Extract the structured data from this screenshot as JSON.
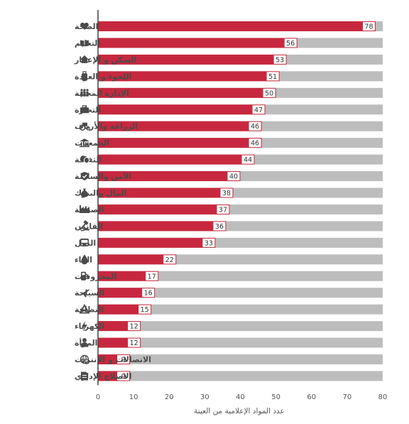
{
  "chart_data": {
    "type": "bar",
    "orientation": "horizontal",
    "xlabel": "عدد المواد الإعلامية من العينة",
    "xlim": [
      0,
      80
    ],
    "xticks": [
      0,
      10,
      20,
      30,
      40,
      50,
      60,
      70,
      80
    ],
    "bar_color": "#c7283f",
    "track_color": "#bdbdbd",
    "categories": [
      {
        "label": "الصحة",
        "value": 78,
        "icon": "heart-icon"
      },
      {
        "label": "التعليم",
        "value": 56,
        "icon": "book-icon"
      },
      {
        "label": "السكن و الإعمار",
        "value": 53,
        "icon": "house-icon"
      },
      {
        "label": "اللجوء و العودة",
        "value": 51,
        "icon": "luggage-icon"
      },
      {
        "label": "الإدارة المحلية",
        "value": 50,
        "icon": "people-icon"
      },
      {
        "label": "التجارة",
        "value": 47,
        "icon": "briefcase-icon"
      },
      {
        "label": "الزراعة والأرياف",
        "value": 46,
        "icon": "tractor-icon"
      },
      {
        "label": "الجمعيات",
        "value": 46,
        "icon": "building-icon"
      },
      {
        "label": "الثقافة",
        "value": 44,
        "icon": "theater-masks-icon"
      },
      {
        "label": "الأمن والسلامة",
        "value": 40,
        "icon": "shield-icon"
      },
      {
        "label": "المال والبنوك",
        "value": 38,
        "icon": "money-bag-icon"
      },
      {
        "label": "الصناعة",
        "value": 37,
        "icon": "factory-icon"
      },
      {
        "label": "القانون",
        "value": 36,
        "icon": "gavel-icon"
      },
      {
        "label": "النقل",
        "value": 33,
        "icon": "bus-icon"
      },
      {
        "label": "الماء",
        "value": 22,
        "icon": "water-drop-icon"
      },
      {
        "label": "المحروقات",
        "value": 17,
        "icon": "fuel-pump-icon"
      },
      {
        "label": "السياحة",
        "value": 16,
        "icon": "airplane-icon"
      },
      {
        "label": "النظافة",
        "value": 15,
        "icon": "recycle-icon"
      },
      {
        "label": "الكهرباء",
        "value": 12,
        "icon": "lightning-icon"
      },
      {
        "label": "المرأة",
        "value": 12,
        "icon": "woman-icon"
      },
      {
        "label": "الاتصالات و الإنترنت",
        "value": 9,
        "icon": "globe-icon"
      },
      {
        "label": "الاصلاح الإداري",
        "value": 9,
        "icon": "document-icon"
      }
    ]
  }
}
